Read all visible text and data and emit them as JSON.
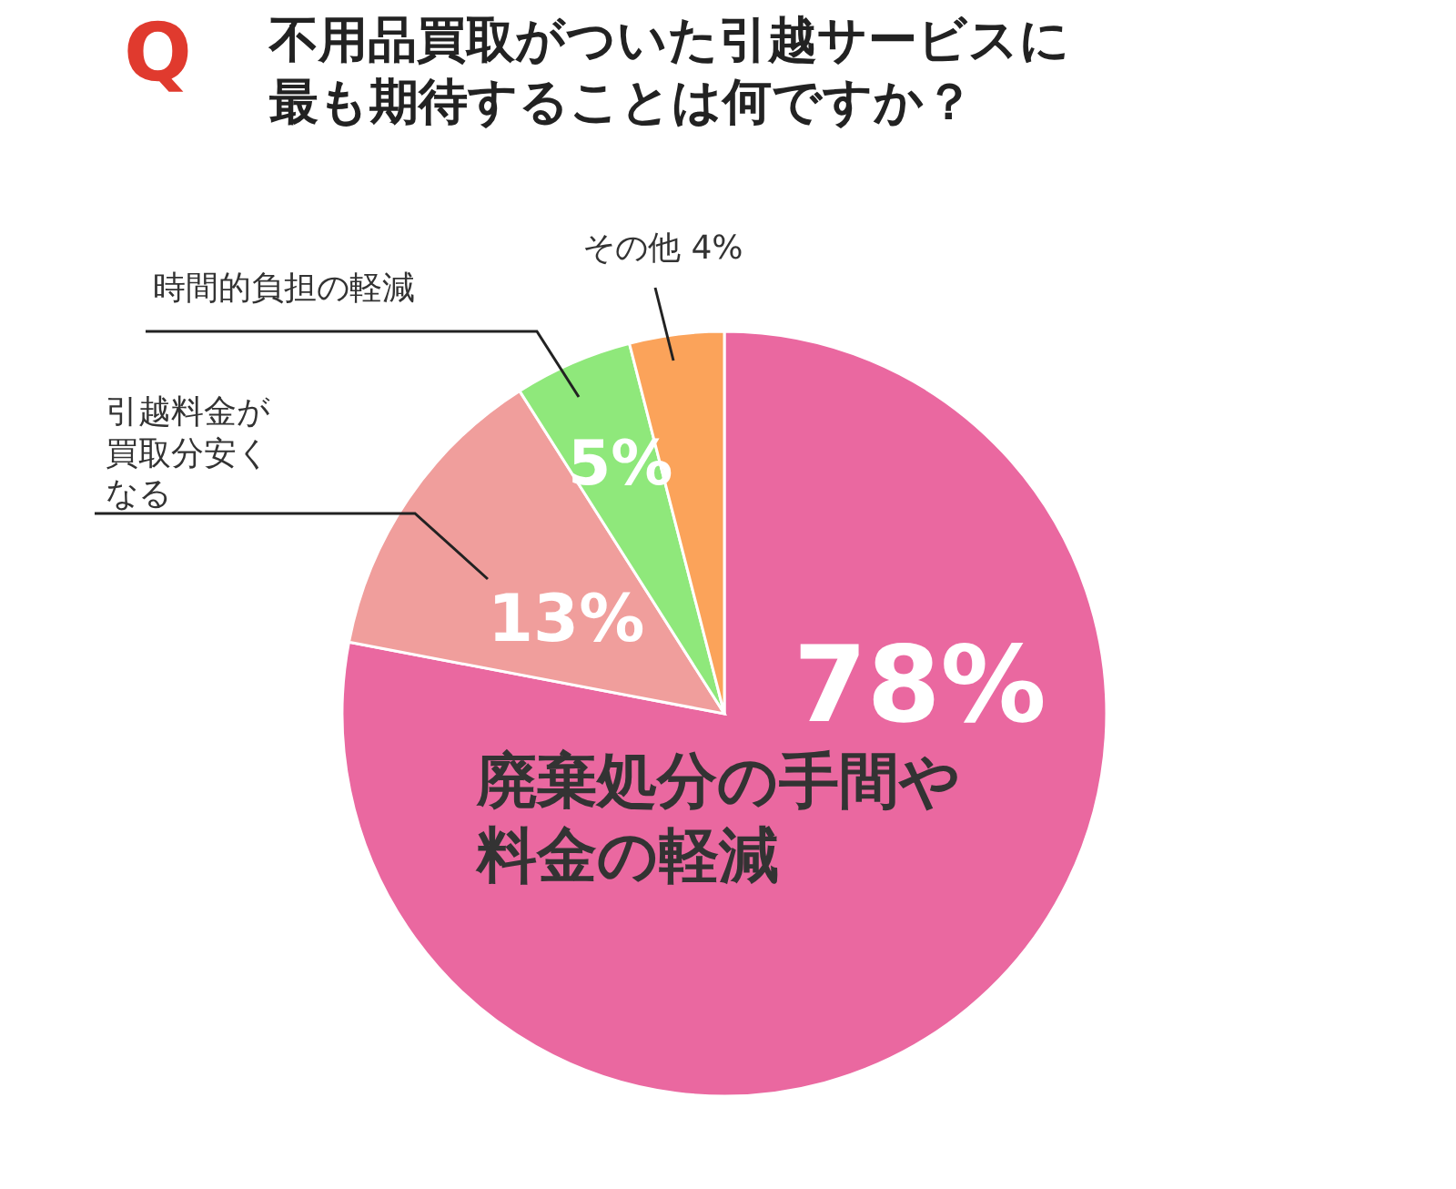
{
  "chart_data": {
    "type": "pie",
    "title": "不用品買取がついた引越サービスに最も期待することは何ですか？",
    "annotations": [
      "Q"
    ],
    "categories": [
      "廃棄処分の手間や料金の軽減",
      "引越料金が買取分安くなる",
      "時間的負担の軽減",
      "その他"
    ],
    "values": [
      78,
      13,
      5,
      4
    ],
    "value_labels": [
      "78%",
      "13%",
      "5%",
      "4%"
    ],
    "colors": [
      "#ea68a0",
      "#f09e9c",
      "#8fe87b",
      "#fba35a"
    ]
  }
}
